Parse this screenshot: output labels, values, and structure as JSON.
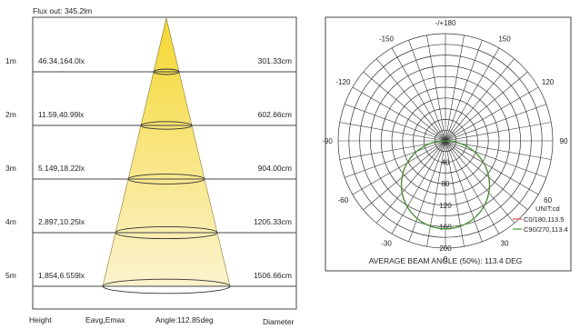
{
  "chart_data": [
    {
      "type": "table",
      "flux_label": "Flux out: 345.2lm",
      "rows": [
        {
          "height": "1m",
          "eavg_emax": "46.34,164.0lx",
          "diameter": "301.33cm"
        },
        {
          "height": "2m",
          "eavg_emax": "11.59,40.99lx",
          "diameter": "602.66cm"
        },
        {
          "height": "3m",
          "eavg_emax": "5.149,18.22lx",
          "diameter": "904.00cm"
        },
        {
          "height": "4m",
          "eavg_emax": "2,897,10.25lx",
          "diameter": "1205.33cm"
        },
        {
          "height": "5m",
          "eavg_emax": "1,854,6.559lx",
          "diameter": "1506.66cm"
        }
      ],
      "footer": {
        "height_label": "Height",
        "eavg_label": "Eavg,Emax",
        "angle_label": "Angle:112.85deg",
        "diameter_label": "Diameter"
      },
      "beam_angle_deg": 112.85,
      "colors": {
        "beam_top": "#f5d830",
        "beam_bottom": "#fbf3cf"
      }
    },
    {
      "type": "polar",
      "angle_labels": [
        "-/+180",
        "-150",
        "150",
        "-120",
        "120",
        "-90",
        "90",
        "-60",
        "60",
        "-30",
        "30",
        "0"
      ],
      "radial_ticks": [
        40,
        80,
        120,
        160,
        200
      ],
      "radial_max": 200,
      "unit": "UNIT:cd",
      "series": [
        {
          "name": "C0/180,113.5",
          "color": "#e05050",
          "beam_angle": 113.5,
          "peak_cd": 164
        },
        {
          "name": "C90/270,113.4",
          "color": "#3a9a3a",
          "beam_angle": 113.4,
          "peak_cd": 164
        }
      ],
      "caption": "AVERAGE BEAM ANGLE (50%): 113.4 DEG"
    }
  ]
}
